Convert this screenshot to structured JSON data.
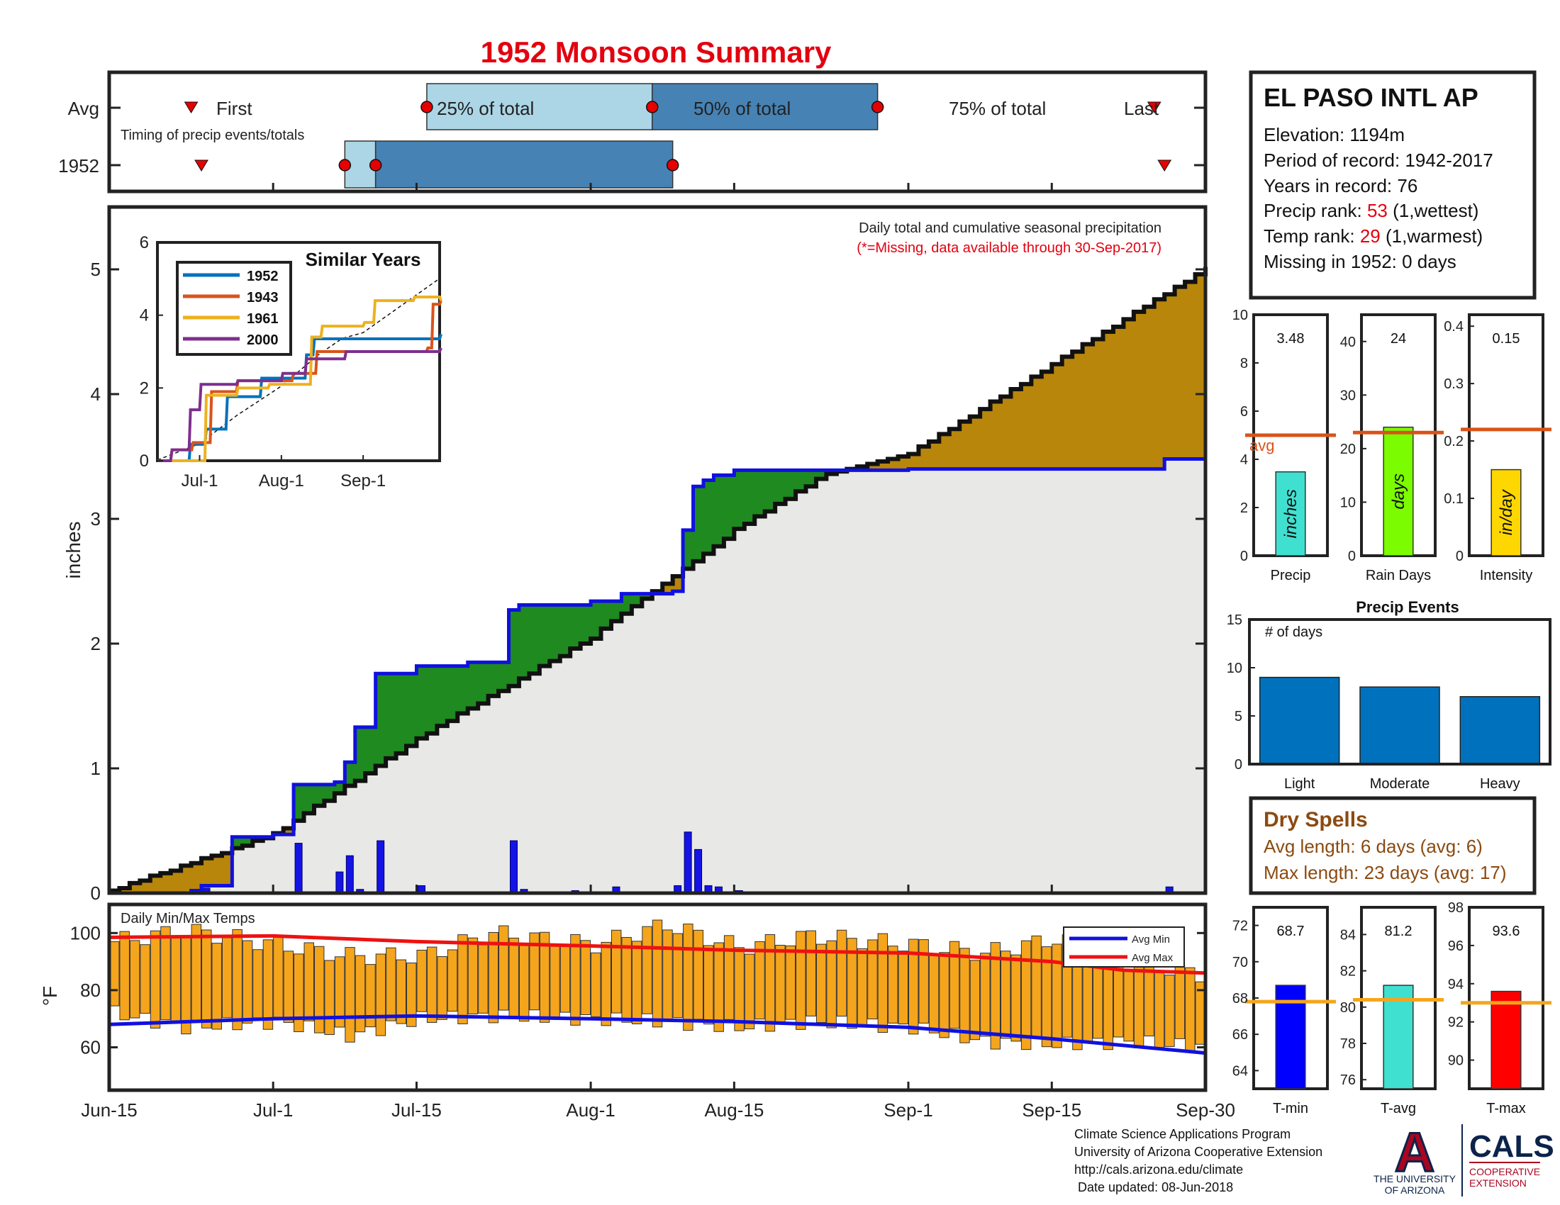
{
  "title": "1952 Monsoon Summary",
  "colors": {
    "title": "#e3000f",
    "frame": "#222222",
    "cum_fill_below": "#e8e8e6",
    "wetter_than_avg": "#1f8a1f",
    "drier_than_avg": "#b8860b",
    "year_line": "#1010e0",
    "avg_line": "#111111",
    "daily_bars": "#1414e6",
    "temp_bars": "#f5a51c",
    "avg_max": "#ee1111",
    "avg_min": "#1010e0",
    "timing_light": "#acd6e6",
    "timing_dark": "#4682b4",
    "marker_red": "#e60000",
    "dry_spell": "#8b4a10",
    "ua_red": "#ab0520",
    "ua_blue": "#0c234b"
  },
  "timing": {
    "row_avg": "Avg",
    "row_year": "1952",
    "sublabel": "Timing of precip events/totals",
    "labels": {
      "first": "First",
      "p25": "25% of total",
      "p50": "50% of total",
      "p75": "75% of total",
      "last": "Last"
    },
    "avg": {
      "first": "Jun-23",
      "p25": "Jul-16",
      "p50": "Aug-7",
      "p75": "Aug-29",
      "last": "Sep-25"
    },
    "year": {
      "first": "Jun-24",
      "p25": "Jul-8",
      "p50": "Jul-11",
      "p75": "Aug-9",
      "last": "Sep-26"
    }
  },
  "station": {
    "name": "EL PASO INTL AP",
    "elevation": "Elevation: 1194m",
    "period": "Period of record: 1942-2017",
    "years": "Years in record: 76",
    "precip_rank_prefix": "Precip rank: ",
    "precip_rank_value": "53",
    "precip_rank_suffix": " (1,wettest)",
    "temp_rank_prefix": "Temp rank: ",
    "temp_rank_value": "29",
    "temp_rank_suffix": " (1,warmest)",
    "missing": "Missing in 1952: 0 days"
  },
  "main_plot": {
    "note_line1": "Daily total and cumulative seasonal precipitation",
    "note_line2": "(*=Missing, data available through 30-Sep-2017)",
    "ylabel": "inches",
    "y_ticks": [
      "0",
      "1",
      "2",
      "3",
      "4",
      "5"
    ],
    "x_ticks": [
      "Jun-15",
      "Jul-1",
      "Jul-15",
      "Aug-1",
      "Aug-15",
      "Sep-1",
      "Sep-15",
      "Sep-30"
    ]
  },
  "inset": {
    "title": "Similar Years",
    "y_ticks": [
      "0",
      "2",
      "4",
      "6"
    ],
    "x_ticks": [
      "Jul-1",
      "Aug-1",
      "Sep-1"
    ],
    "legend": [
      {
        "name": "1952",
        "color": "#0072bd"
      },
      {
        "name": "1943",
        "color": "#d95319"
      },
      {
        "name": "1961",
        "color": "#edb120"
      },
      {
        "name": "2000",
        "color": "#7e2f8e"
      }
    ]
  },
  "temps": {
    "label": "Daily Min/Max Temps",
    "ylabel": "°F",
    "y_ticks": [
      "60",
      "80",
      "100"
    ],
    "legend_min": "Avg Min",
    "legend_max": "Avg Max"
  },
  "stats_panels": [
    {
      "label": "Precip",
      "value": "3.48",
      "bar_text": "inches",
      "avg_label": "avg",
      "y_ticks": [
        "0",
        "2",
        "4",
        "6",
        "8",
        "10"
      ],
      "color": "#40e0d0"
    },
    {
      "label": "Rain Days",
      "value": "24",
      "bar_text": "days",
      "y_ticks": [
        "0",
        "10",
        "20",
        "30",
        "40"
      ],
      "color": "#7cfc00"
    },
    {
      "label": "Intensity",
      "value": "0.15",
      "bar_text": "in/day",
      "y_ticks": [
        "0",
        "0.1",
        "0.2",
        "0.3",
        "0.4"
      ],
      "color": "#ffd700"
    }
  ],
  "precip_events": {
    "title": "Precip Events",
    "ylabel_note": "# of days",
    "y_ticks": [
      "0",
      "5",
      "10",
      "15"
    ],
    "categories": [
      "Light",
      "Moderate",
      "Heavy"
    ],
    "bar_color": "#0072bd"
  },
  "dry_spells": {
    "title": "Dry Spells",
    "avg_length": "Avg length: 6 days (avg: 6)",
    "max_length": "Max length: 23 days (avg: 17)"
  },
  "temp_panels": [
    {
      "label": "T-min",
      "value": "68.7",
      "y_ticks": [
        "64",
        "66",
        "68",
        "70",
        "72"
      ],
      "color": "#0000ff"
    },
    {
      "label": "T-avg",
      "value": "81.2",
      "y_ticks": [
        "76",
        "78",
        "80",
        "82",
        "84"
      ],
      "color": "#40e0d0"
    },
    {
      "label": "T-max",
      "value": "93.6",
      "y_ticks": [
        "90",
        "92",
        "94",
        "96",
        "98"
      ],
      "color": "#ff0000"
    }
  ],
  "footer": {
    "line1": "Climate Science Applications Program",
    "line2": "University of Arizona Cooperative Extension",
    "line3": "http://cals.arizona.edu/climate",
    "line4": "Date updated: 08-Jun-2018"
  },
  "logos": {
    "ua_letter": "A",
    "ua_line1": "THE UNIVERSITY",
    "ua_line2": "OF ARIZONA",
    "cals_name": "CALS",
    "cals_line1": "COOPERATIVE",
    "cals_line2": "EXTENSION"
  },
  "chart_data": [
    {
      "type": "area",
      "title": "Daily total and cumulative seasonal precipitation",
      "ylabel": "inches",
      "ylim": [
        0,
        5.5
      ],
      "x_range": [
        "Jun-15",
        "Sep-30"
      ],
      "cumulative_1952": {
        "x": [
          "Jun-15",
          "Jun-23",
          "Jun-24",
          "Jun-27",
          "Jul-1",
          "Jul-3",
          "Jul-7",
          "Jul-8",
          "Jul-9",
          "Jul-11",
          "Jul-15",
          "Jul-20",
          "Jul-24",
          "Jul-25",
          "Aug-1",
          "Aug-4",
          "Aug-9",
          "Aug-10",
          "Aug-11",
          "Aug-12",
          "Aug-13",
          "Aug-15",
          "Sep-1",
          "Sep-26",
          "Sep-30"
        ],
        "y": [
          0,
          0.02,
          0.06,
          0.45,
          0.47,
          0.87,
          0.89,
          1.05,
          1.33,
          1.76,
          1.82,
          1.85,
          2.27,
          2.31,
          2.34,
          2.4,
          2.42,
          2.91,
          3.26,
          3.31,
          3.35,
          3.39,
          3.4,
          3.48,
          3.48
        ]
      },
      "cumulative_avg": {
        "x": [
          "Jun-15",
          "Jul-1",
          "Jul-15",
          "Aug-1",
          "Aug-15",
          "Aug-24",
          "Sep-1",
          "Sep-15",
          "Sep-30"
        ],
        "y": [
          0.02,
          0.47,
          1.24,
          2.05,
          2.91,
          3.36,
          3.52,
          4.24,
          5.01
        ]
      },
      "daily_1952": {
        "x": [
          "Jun-23",
          "Jun-24",
          "Jul-3",
          "Jul-7",
          "Jul-8",
          "Jul-9",
          "Jul-11",
          "Jul-15",
          "Jul-18",
          "Jul-24",
          "Jul-25",
          "Jul-30",
          "Aug-3",
          "Aug-9",
          "Aug-10",
          "Aug-11",
          "Aug-12",
          "Aug-13",
          "Aug-15",
          "Sep-26"
        ],
        "y": [
          0.02,
          0.04,
          0.4,
          0.17,
          0.3,
          0.03,
          0.42,
          0.06,
          0.01,
          0.42,
          0.03,
          0.02,
          0.05,
          0.06,
          0.49,
          0.35,
          0.06,
          0.05,
          0.02,
          0.05
        ]
      }
    },
    {
      "type": "line",
      "title": "Similar Years",
      "ylim": [
        0,
        6
      ],
      "x_ticks": [
        "Jul-1",
        "Aug-1",
        "Sep-1"
      ],
      "series": [
        {
          "name": "1952",
          "x": [
            "Jun-15",
            "Jun-27",
            "Jul-3",
            "Jul-11",
            "Jul-24",
            "Aug-10",
            "Aug-13",
            "Sep-30"
          ],
          "y": [
            0,
            0.45,
            0.87,
            1.76,
            2.27,
            2.91,
            3.35,
            3.48
          ]
        },
        {
          "name": "1943",
          "x": [
            "Jun-15",
            "Jun-20",
            "Jun-28",
            "Jul-5",
            "Jul-15",
            "Aug-5",
            "Aug-14",
            "Sep-25",
            "Sep-27",
            "Sep-30"
          ],
          "y": [
            0,
            0.3,
            0.5,
            1.9,
            2.2,
            2.4,
            3.0,
            3.1,
            4.3,
            4.4
          ]
        },
        {
          "name": "1961",
          "x": [
            "Jun-15",
            "Jun-30",
            "Jul-3",
            "Jul-15",
            "Jul-27",
            "Aug-12",
            "Aug-16",
            "Sep-1",
            "Sep-5",
            "Sep-20",
            "Sep-30"
          ],
          "y": [
            0,
            0,
            1.8,
            2.0,
            2.1,
            3.4,
            3.7,
            3.8,
            4.4,
            4.5,
            4.4
          ]
        },
        {
          "name": "2000",
          "x": [
            "Jun-15",
            "Jun-20",
            "Jun-27",
            "Jul-1",
            "Jul-15",
            "Aug-1",
            "Aug-10",
            "Aug-25",
            "Sep-30"
          ],
          "y": [
            0,
            0.3,
            1.4,
            2.1,
            2.2,
            2.4,
            2.8,
            3.0,
            3.1
          ]
        }
      ]
    },
    {
      "type": "bar",
      "title": "Daily Min/Max Temps",
      "ylabel": "°F",
      "ylim": [
        45,
        110
      ],
      "avg_max": {
        "x": [
          "Jun-15",
          "Jul-1",
          "Jul-15",
          "Aug-1",
          "Aug-15",
          "Sep-1",
          "Sep-15",
          "Sep-22",
          "Sep-30"
        ],
        "y": [
          98.5,
          99,
          97,
          95.5,
          94,
          93,
          90,
          87,
          86
        ]
      },
      "avg_min": {
        "x": [
          "Jun-15",
          "Jul-1",
          "Jul-15",
          "Aug-1",
          "Aug-15",
          "Sep-1",
          "Sep-15",
          "Sep-30"
        ],
        "y": [
          68,
          70,
          71,
          70,
          69,
          67,
          63,
          58
        ]
      },
      "daily_range_1952": {
        "x": [
          "Jun-15",
          "Jun-22",
          "Jul-1",
          "Jul-8",
          "Jul-15",
          "Jul-22",
          "Aug-1",
          "Aug-8",
          "Aug-15",
          "Aug-22",
          "Sep-1",
          "Sep-8",
          "Sep-15",
          "Sep-22",
          "Sep-30"
        ],
        "max": [
          97,
          101,
          96,
          92,
          92,
          100,
          96,
          103,
          95,
          99,
          96,
          93,
          98,
          90,
          85
        ],
        "min": [
          72,
          67,
          69,
          64,
          70,
          71,
          70,
          69,
          67,
          69,
          67,
          62,
          61,
          62,
          60
        ]
      }
    },
    {
      "type": "bar",
      "title": "Seasonal totals vs average",
      "categories": [
        "Precip",
        "Rain Days",
        "Intensity"
      ],
      "values": [
        3.48,
        24,
        0.15
      ],
      "averages": [
        5.0,
        23,
        0.22
      ],
      "ylims": [
        [
          0,
          10
        ],
        [
          0,
          45
        ],
        [
          0,
          0.42
        ]
      ]
    },
    {
      "type": "bar",
      "title": "Precip Events",
      "categories": [
        "Light",
        "Moderate",
        "Heavy"
      ],
      "values": [
        9,
        8,
        7
      ],
      "ylim": [
        0,
        15
      ]
    },
    {
      "type": "bar",
      "title": "Seasonal temperatures vs average",
      "categories": [
        "T-min",
        "T-avg",
        "T-max"
      ],
      "values": [
        68.7,
        81.2,
        93.6
      ],
      "averages": [
        67.8,
        80.4,
        93.0
      ],
      "ylims": [
        [
          63,
          73
        ],
        [
          75.5,
          85.5
        ],
        [
          88.5,
          98
        ]
      ]
    }
  ]
}
